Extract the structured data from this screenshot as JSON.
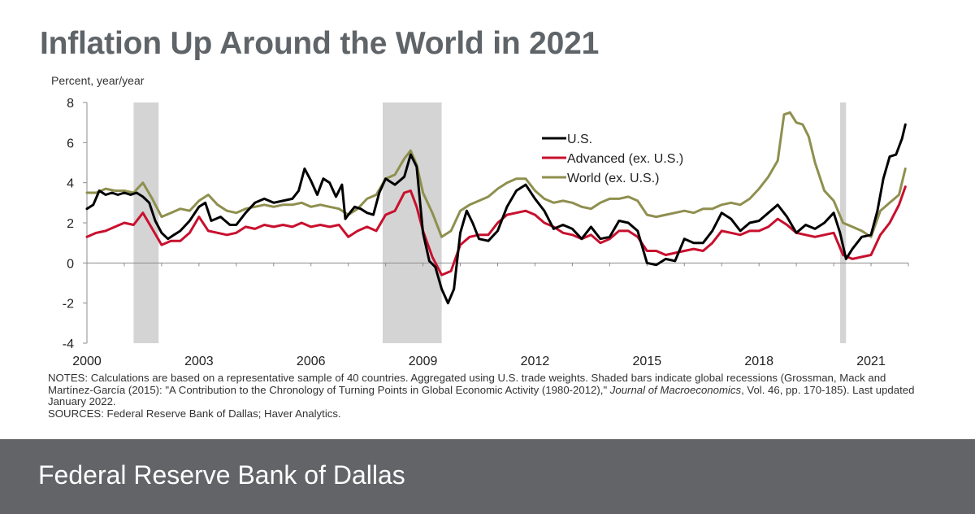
{
  "title": "Inflation Up Around the World in 2021",
  "colors": {
    "us": "#000000",
    "advanced": "#c8102e",
    "world": "#8f8f4f",
    "recession": "#d4d4d4",
    "title": "#5f6468",
    "footer_bg": "#626467"
  },
  "chart_data": {
    "type": "line",
    "ylabel": "Percent, year/year",
    "xlabel": "",
    "ylim": [
      -4,
      8
    ],
    "xlim": [
      2000.0,
      2022.0
    ],
    "yticks": [
      "8",
      "6",
      "4",
      "2",
      "0",
      "-2",
      "-4"
    ],
    "ytick_values": [
      8,
      6,
      4,
      2,
      0,
      -2,
      -4
    ],
    "xticks": [
      "2000",
      "2003",
      "2006",
      "2009",
      "2012",
      "2015",
      "2018",
      "2021"
    ],
    "xtick_values": [
      2000,
      2003,
      2006,
      2009,
      2012,
      2015,
      2018,
      2021
    ],
    "legend_position": "upper-center",
    "recessions": [
      [
        2001.25,
        2001.92
      ],
      [
        2007.92,
        2009.5
      ],
      [
        2020.17,
        2020.33
      ]
    ],
    "series": [
      {
        "name": "U.S.",
        "color": "#000000",
        "points": [
          [
            2000.0,
            2.7
          ],
          [
            2000.17,
            2.9
          ],
          [
            2000.33,
            3.6
          ],
          [
            2000.5,
            3.4
          ],
          [
            2000.67,
            3.5
          ],
          [
            2000.83,
            3.4
          ],
          [
            2001.0,
            3.5
          ],
          [
            2001.17,
            3.4
          ],
          [
            2001.33,
            3.5
          ],
          [
            2001.5,
            3.3
          ],
          [
            2001.67,
            3.0
          ],
          [
            2001.83,
            2.1
          ],
          [
            2002.0,
            1.5
          ],
          [
            2002.17,
            1.2
          ],
          [
            2002.33,
            1.4
          ],
          [
            2002.5,
            1.6
          ],
          [
            2002.75,
            2.1
          ],
          [
            2003.0,
            2.8
          ],
          [
            2003.17,
            3.0
          ],
          [
            2003.33,
            2.1
          ],
          [
            2003.58,
            2.3
          ],
          [
            2003.83,
            1.9
          ],
          [
            2004.0,
            1.9
          ],
          [
            2004.25,
            2.5
          ],
          [
            2004.5,
            3.0
          ],
          [
            2004.75,
            3.2
          ],
          [
            2005.0,
            3.0
          ],
          [
            2005.25,
            3.1
          ],
          [
            2005.5,
            3.2
          ],
          [
            2005.67,
            3.6
          ],
          [
            2005.83,
            4.7
          ],
          [
            2006.0,
            4.1
          ],
          [
            2006.17,
            3.4
          ],
          [
            2006.33,
            4.2
          ],
          [
            2006.5,
            4.0
          ],
          [
            2006.67,
            3.3
          ],
          [
            2006.83,
            3.9
          ],
          [
            2006.92,
            2.2
          ],
          [
            2007.0,
            2.4
          ],
          [
            2007.17,
            2.8
          ],
          [
            2007.33,
            2.7
          ],
          [
            2007.5,
            2.5
          ],
          [
            2007.67,
            2.4
          ],
          [
            2007.83,
            3.5
          ],
          [
            2008.0,
            4.2
          ],
          [
            2008.25,
            3.9
          ],
          [
            2008.5,
            4.3
          ],
          [
            2008.67,
            5.4
          ],
          [
            2008.83,
            4.8
          ],
          [
            2009.0,
            1.5
          ],
          [
            2009.17,
            0.1
          ],
          [
            2009.33,
            -0.2
          ],
          [
            2009.5,
            -1.3
          ],
          [
            2009.67,
            -2.0
          ],
          [
            2009.83,
            -1.3
          ],
          [
            2010.0,
            1.5
          ],
          [
            2010.17,
            2.6
          ],
          [
            2010.33,
            2.0
          ],
          [
            2010.5,
            1.2
          ],
          [
            2010.75,
            1.1
          ],
          [
            2011.0,
            1.6
          ],
          [
            2011.25,
            2.8
          ],
          [
            2011.5,
            3.6
          ],
          [
            2011.75,
            3.9
          ],
          [
            2012.0,
            3.2
          ],
          [
            2012.25,
            2.6
          ],
          [
            2012.5,
            1.7
          ],
          [
            2012.75,
            1.9
          ],
          [
            2013.0,
            1.7
          ],
          [
            2013.25,
            1.2
          ],
          [
            2013.5,
            1.8
          ],
          [
            2013.75,
            1.2
          ],
          [
            2014.0,
            1.3
          ],
          [
            2014.25,
            2.1
          ],
          [
            2014.5,
            2.0
          ],
          [
            2014.75,
            1.6
          ],
          [
            2015.0,
            0.0
          ],
          [
            2015.25,
            -0.1
          ],
          [
            2015.5,
            0.2
          ],
          [
            2015.75,
            0.1
          ],
          [
            2016.0,
            1.2
          ],
          [
            2016.25,
            1.0
          ],
          [
            2016.5,
            1.0
          ],
          [
            2016.75,
            1.6
          ],
          [
            2017.0,
            2.5
          ],
          [
            2017.25,
            2.2
          ],
          [
            2017.5,
            1.6
          ],
          [
            2017.75,
            2.0
          ],
          [
            2018.0,
            2.1
          ],
          [
            2018.25,
            2.5
          ],
          [
            2018.5,
            2.9
          ],
          [
            2018.75,
            2.3
          ],
          [
            2019.0,
            1.5
          ],
          [
            2019.25,
            1.9
          ],
          [
            2019.5,
            1.7
          ],
          [
            2019.75,
            2.0
          ],
          [
            2020.0,
            2.5
          ],
          [
            2020.17,
            1.5
          ],
          [
            2020.33,
            0.2
          ],
          [
            2020.5,
            0.7
          ],
          [
            2020.75,
            1.3
          ],
          [
            2021.0,
            1.4
          ],
          [
            2021.17,
            2.6
          ],
          [
            2021.33,
            4.2
          ],
          [
            2021.5,
            5.3
          ],
          [
            2021.67,
            5.4
          ],
          [
            2021.83,
            6.2
          ],
          [
            2021.92,
            6.9
          ]
        ]
      },
      {
        "name": "Advanced (ex. U.S.)",
        "color": "#c8102e",
        "points": [
          [
            2000.0,
            1.3
          ],
          [
            2000.25,
            1.5
          ],
          [
            2000.5,
            1.6
          ],
          [
            2000.75,
            1.8
          ],
          [
            2001.0,
            2.0
          ],
          [
            2001.25,
            1.9
          ],
          [
            2001.5,
            2.5
          ],
          [
            2001.75,
            1.7
          ],
          [
            2002.0,
            0.9
          ],
          [
            2002.25,
            1.1
          ],
          [
            2002.5,
            1.1
          ],
          [
            2002.75,
            1.5
          ],
          [
            2003.0,
            2.3
          ],
          [
            2003.25,
            1.6
          ],
          [
            2003.5,
            1.5
          ],
          [
            2003.75,
            1.4
          ],
          [
            2004.0,
            1.5
          ],
          [
            2004.25,
            1.8
          ],
          [
            2004.5,
            1.7
          ],
          [
            2004.75,
            1.9
          ],
          [
            2005.0,
            1.8
          ],
          [
            2005.25,
            1.9
          ],
          [
            2005.5,
            1.8
          ],
          [
            2005.75,
            2.0
          ],
          [
            2006.0,
            1.8
          ],
          [
            2006.25,
            1.9
          ],
          [
            2006.5,
            1.8
          ],
          [
            2006.75,
            1.9
          ],
          [
            2007.0,
            1.3
          ],
          [
            2007.25,
            1.6
          ],
          [
            2007.5,
            1.8
          ],
          [
            2007.75,
            1.6
          ],
          [
            2008.0,
            2.4
          ],
          [
            2008.25,
            2.6
          ],
          [
            2008.5,
            3.5
          ],
          [
            2008.67,
            3.6
          ],
          [
            2008.83,
            2.8
          ],
          [
            2009.0,
            1.6
          ],
          [
            2009.25,
            0.3
          ],
          [
            2009.5,
            -0.6
          ],
          [
            2009.75,
            -0.4
          ],
          [
            2010.0,
            0.9
          ],
          [
            2010.25,
            1.3
          ],
          [
            2010.5,
            1.4
          ],
          [
            2010.75,
            1.4
          ],
          [
            2011.0,
            2.0
          ],
          [
            2011.25,
            2.4
          ],
          [
            2011.5,
            2.5
          ],
          [
            2011.75,
            2.6
          ],
          [
            2012.0,
            2.4
          ],
          [
            2012.25,
            2.0
          ],
          [
            2012.5,
            1.8
          ],
          [
            2012.75,
            1.5
          ],
          [
            2013.0,
            1.4
          ],
          [
            2013.25,
            1.2
          ],
          [
            2013.5,
            1.4
          ],
          [
            2013.75,
            1.0
          ],
          [
            2014.0,
            1.2
          ],
          [
            2014.25,
            1.6
          ],
          [
            2014.5,
            1.6
          ],
          [
            2014.75,
            1.3
          ],
          [
            2015.0,
            0.6
          ],
          [
            2015.25,
            0.6
          ],
          [
            2015.5,
            0.4
          ],
          [
            2015.75,
            0.5
          ],
          [
            2016.0,
            0.6
          ],
          [
            2016.25,
            0.7
          ],
          [
            2016.5,
            0.6
          ],
          [
            2016.75,
            1.0
          ],
          [
            2017.0,
            1.6
          ],
          [
            2017.25,
            1.5
          ],
          [
            2017.5,
            1.4
          ],
          [
            2017.75,
            1.6
          ],
          [
            2018.0,
            1.6
          ],
          [
            2018.25,
            1.8
          ],
          [
            2018.5,
            2.2
          ],
          [
            2018.75,
            1.9
          ],
          [
            2019.0,
            1.5
          ],
          [
            2019.25,
            1.4
          ],
          [
            2019.5,
            1.3
          ],
          [
            2019.75,
            1.4
          ],
          [
            2020.0,
            1.5
          ],
          [
            2020.25,
            0.4
          ],
          [
            2020.5,
            0.2
          ],
          [
            2020.75,
            0.3
          ],
          [
            2021.0,
            0.4
          ],
          [
            2021.25,
            1.4
          ],
          [
            2021.5,
            2.0
          ],
          [
            2021.75,
            2.9
          ],
          [
            2021.92,
            3.8
          ]
        ]
      },
      {
        "name": "World (ex. U.S.)",
        "color": "#8f8f4f",
        "points": [
          [
            2000.0,
            3.5
          ],
          [
            2000.25,
            3.5
          ],
          [
            2000.5,
            3.7
          ],
          [
            2000.75,
            3.6
          ],
          [
            2001.0,
            3.6
          ],
          [
            2001.25,
            3.5
          ],
          [
            2001.5,
            4.0
          ],
          [
            2001.75,
            3.2
          ],
          [
            2002.0,
            2.3
          ],
          [
            2002.25,
            2.5
          ],
          [
            2002.5,
            2.7
          ],
          [
            2002.75,
            2.6
          ],
          [
            2003.0,
            3.1
          ],
          [
            2003.25,
            3.4
          ],
          [
            2003.5,
            2.9
          ],
          [
            2003.75,
            2.6
          ],
          [
            2004.0,
            2.5
          ],
          [
            2004.25,
            2.7
          ],
          [
            2004.5,
            2.8
          ],
          [
            2004.75,
            2.9
          ],
          [
            2005.0,
            2.8
          ],
          [
            2005.25,
            2.9
          ],
          [
            2005.5,
            2.9
          ],
          [
            2005.75,
            3.0
          ],
          [
            2006.0,
            2.8
          ],
          [
            2006.25,
            2.9
          ],
          [
            2006.5,
            2.8
          ],
          [
            2006.75,
            2.7
          ],
          [
            2007.0,
            2.4
          ],
          [
            2007.25,
            2.7
          ],
          [
            2007.5,
            3.2
          ],
          [
            2007.75,
            3.4
          ],
          [
            2008.0,
            4.2
          ],
          [
            2008.25,
            4.4
          ],
          [
            2008.5,
            5.2
          ],
          [
            2008.67,
            5.6
          ],
          [
            2008.83,
            4.9
          ],
          [
            2009.0,
            3.5
          ],
          [
            2009.25,
            2.5
          ],
          [
            2009.5,
            1.3
          ],
          [
            2009.75,
            1.6
          ],
          [
            2010.0,
            2.6
          ],
          [
            2010.25,
            2.9
          ],
          [
            2010.5,
            3.1
          ],
          [
            2010.75,
            3.3
          ],
          [
            2011.0,
            3.7
          ],
          [
            2011.25,
            4.0
          ],
          [
            2011.5,
            4.2
          ],
          [
            2011.75,
            4.2
          ],
          [
            2012.0,
            3.6
          ],
          [
            2012.25,
            3.2
          ],
          [
            2012.5,
            3.0
          ],
          [
            2012.75,
            3.1
          ],
          [
            2013.0,
            3.0
          ],
          [
            2013.25,
            2.8
          ],
          [
            2013.5,
            2.7
          ],
          [
            2013.75,
            3.0
          ],
          [
            2014.0,
            3.2
          ],
          [
            2014.25,
            3.2
          ],
          [
            2014.5,
            3.3
          ],
          [
            2014.75,
            3.1
          ],
          [
            2015.0,
            2.4
          ],
          [
            2015.25,
            2.3
          ],
          [
            2015.5,
            2.4
          ],
          [
            2015.75,
            2.5
          ],
          [
            2016.0,
            2.6
          ],
          [
            2016.25,
            2.5
          ],
          [
            2016.5,
            2.7
          ],
          [
            2016.75,
            2.7
          ],
          [
            2017.0,
            2.9
          ],
          [
            2017.25,
            3.0
          ],
          [
            2017.5,
            2.9
          ],
          [
            2017.75,
            3.2
          ],
          [
            2018.0,
            3.7
          ],
          [
            2018.25,
            4.3
          ],
          [
            2018.5,
            5.1
          ],
          [
            2018.67,
            7.4
          ],
          [
            2018.83,
            7.5
          ],
          [
            2019.0,
            7.0
          ],
          [
            2019.17,
            6.9
          ],
          [
            2019.33,
            6.3
          ],
          [
            2019.5,
            5.0
          ],
          [
            2019.75,
            3.6
          ],
          [
            2020.0,
            3.1
          ],
          [
            2020.25,
            2.0
          ],
          [
            2020.5,
            1.8
          ],
          [
            2020.75,
            1.6
          ],
          [
            2021.0,
            1.3
          ],
          [
            2021.25,
            2.6
          ],
          [
            2021.5,
            3.0
          ],
          [
            2021.75,
            3.4
          ],
          [
            2021.92,
            4.7
          ]
        ]
      }
    ]
  },
  "notes": {
    "notes_text_1": "NOTES: Calculations are based on a representative sample of 40 countries.  Aggregated using U.S. trade weights.  Shaded bars indicate global recessions (Grossman, Mack and Martínez-García (2015): \"A Contribution to the Chronology of Turning Points in Global Economic Activity (1980-2012),\" ",
    "journal": "Journal of Macroeconomics",
    "notes_text_2": ", Vol. 46, pp. 170-185). Last updated January 2022.",
    "sources": "SOURCES: Federal Reserve Bank of Dallas; Haver Analytics."
  },
  "footer": {
    "name": "Federal Reserve Bank of Dallas"
  }
}
